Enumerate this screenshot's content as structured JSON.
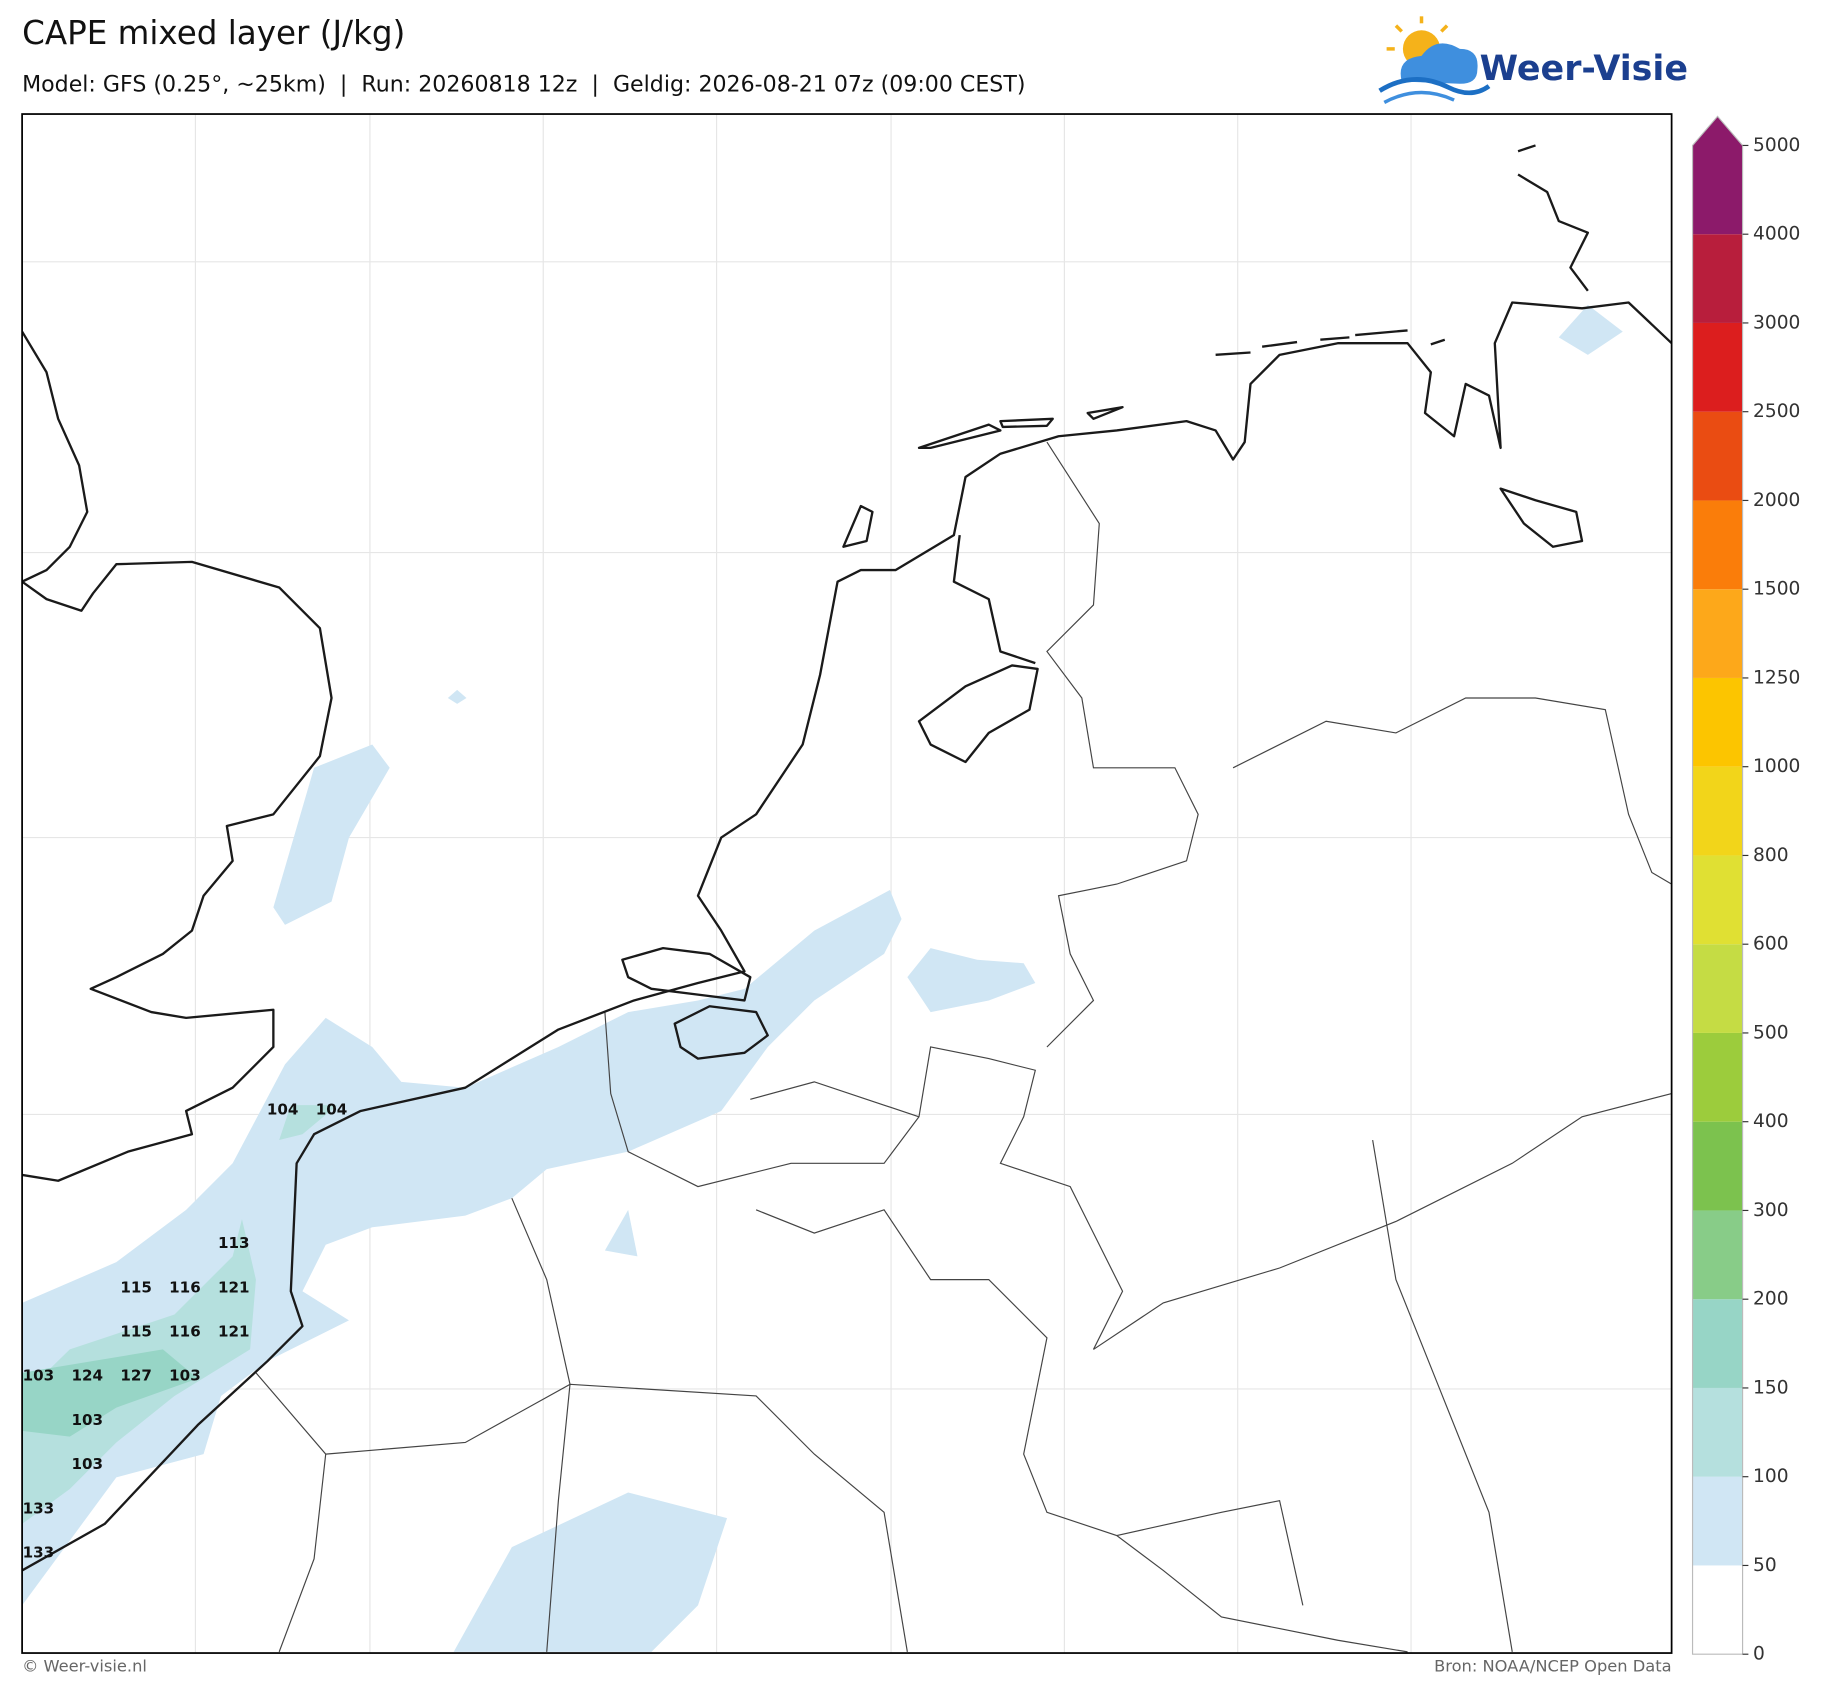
{
  "header": {
    "title": "CAPE mixed layer (J/kg)",
    "subtitle": "Model: GFS (0.25°, ~25km)  |  Run: 20260818 12z  |  Geldig: 2026-08-21 07z (09:00 CEST)",
    "logo": "Weer-Visie"
  },
  "map": {
    "value_labels": [
      104,
      104,
      113,
      115,
      116,
      121,
      115,
      116,
      121,
      103,
      124,
      127,
      103,
      103,
      103,
      133,
      133
    ]
  },
  "colorbar": {
    "ticks": [
      0,
      50,
      100,
      150,
      200,
      300,
      400,
      500,
      600,
      800,
      1000,
      1250,
      1500,
      2000,
      2500,
      3000,
      4000,
      5000
    ],
    "colors": [
      "#ffffff",
      "#d0e6f4",
      "#b5e0de",
      "#97d5c6",
      "#88cc88",
      "#7cc24e",
      "#9ccc3c",
      "#c5dc44",
      "#e0e033",
      "#f2d51a",
      "#fcc500",
      "#fda81a",
      "#fa7d0a",
      "#ea4c12",
      "#dc1e1e",
      "#b81e3c",
      "#8c1a6a"
    ]
  },
  "footer": {
    "left": "© Weer-visie.nl",
    "right": "Bron: NOAA/NCEP Open Data"
  }
}
